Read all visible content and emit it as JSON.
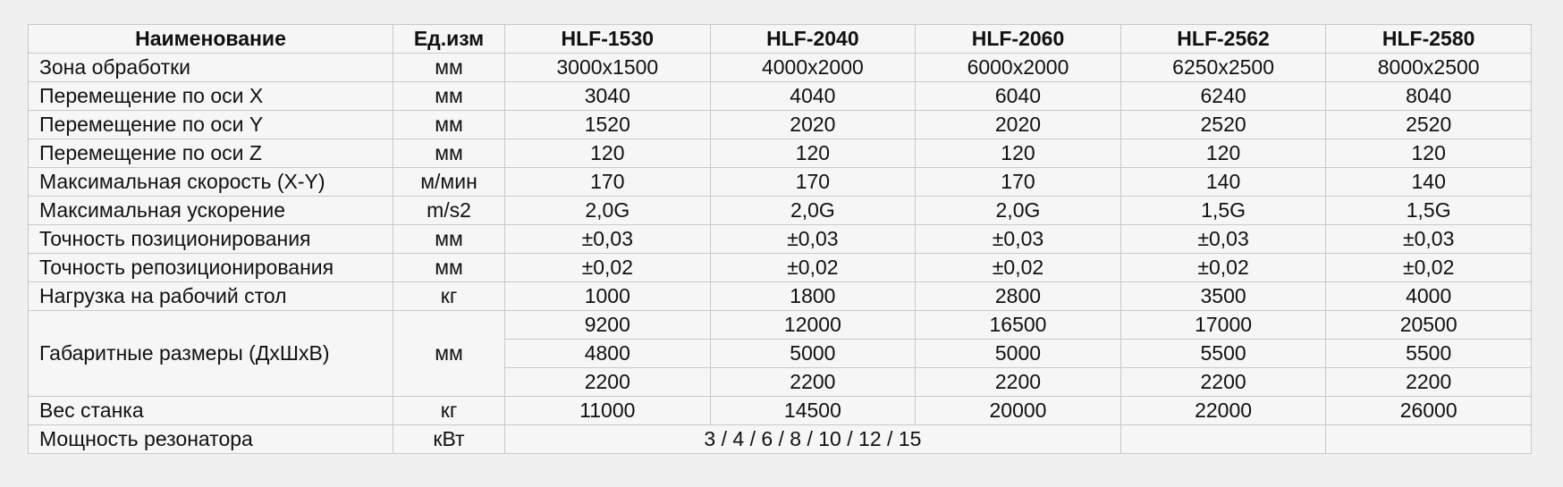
{
  "header": {
    "name": "Наименование",
    "unit": "Ед.изм",
    "models": [
      "HLF-1530",
      "HLF-2040",
      "HLF-2060",
      "HLF-2562",
      "HLF-2580"
    ]
  },
  "rows": [
    {
      "name": "Зона обработки",
      "unit": "мм",
      "values": [
        "3000x1500",
        "4000x2000",
        "6000x2000",
        "6250x2500",
        "8000x2500"
      ]
    },
    {
      "name": "Перемещение по оси X",
      "unit": "мм",
      "values": [
        "3040",
        "4040",
        "6040",
        "6240",
        "8040"
      ]
    },
    {
      "name": "Перемещение по оси Y",
      "unit": "мм",
      "values": [
        "1520",
        "2020",
        "2020",
        "2520",
        "2520"
      ]
    },
    {
      "name": "Перемещение по оси Z",
      "unit": "мм",
      "values": [
        "120",
        "120",
        "120",
        "120",
        "120"
      ]
    },
    {
      "name": "Максимальная скорость (X-Y)",
      "unit": "м/мин",
      "values": [
        "170",
        "170",
        "170",
        "140",
        "140"
      ]
    },
    {
      "name": "Максимальная ускорение",
      "unit": "m/s2",
      "values": [
        "2,0G",
        "2,0G",
        "2,0G",
        "1,5G",
        "1,5G"
      ]
    },
    {
      "name": "Точность позиционирования",
      "unit": "мм",
      "values": [
        "±0,03",
        "±0,03",
        "±0,03",
        "±0,03",
        "±0,03"
      ]
    },
    {
      "name": "Точность репозиционирования",
      "unit": "мм",
      "values": [
        "±0,02",
        "±0,02",
        "±0,02",
        "±0,02",
        "±0,02"
      ]
    },
    {
      "name": "Нагрузка на рабочий стол",
      "unit": "кг",
      "values": [
        "1000",
        "1800",
        "2800",
        "3500",
        "4000"
      ]
    }
  ],
  "dimensions": {
    "name": "Габаритные размеры (ДхШхВ)",
    "unit": "мм",
    "length": [
      "9200",
      "12000",
      "16500",
      "17000",
      "20500"
    ],
    "width": [
      "4800",
      "5000",
      "5000",
      "5500",
      "5500"
    ],
    "height": [
      "2200",
      "2200",
      "2200",
      "2200",
      "2200"
    ]
  },
  "weight": {
    "name": "Вес станка",
    "unit": "кг",
    "values": [
      "11000",
      "14500",
      "20000",
      "22000",
      "26000"
    ]
  },
  "power": {
    "name": "Мощность резонатора",
    "unit": "кВт",
    "value": "3 / 4 / 6 / 8 / 10 / 12 / 15"
  }
}
